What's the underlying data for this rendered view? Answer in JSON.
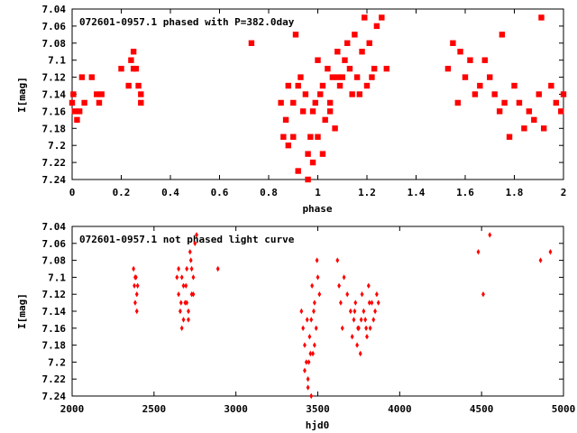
{
  "chart_data": [
    {
      "type": "scatter",
      "title": "072601-0957.1 phased with P=382.0day",
      "xlabel": "phase",
      "ylabel": "I[mag]",
      "xlim": [
        0,
        2
      ],
      "ylim": [
        7.24,
        7.04
      ],
      "y_inverted": true,
      "xticks": [
        0,
        0.2,
        0.4,
        0.6,
        0.8,
        1,
        1.2,
        1.4,
        1.6,
        1.8,
        2
      ],
      "xtick_labels": [
        "0",
        "0.2",
        "0.4",
        "0.6",
        "0.8",
        "1",
        "1.2",
        "1.4",
        "1.6",
        "1.8",
        "2"
      ],
      "yticks": [
        7.04,
        7.06,
        7.08,
        7.1,
        7.12,
        7.14,
        7.16,
        7.18,
        7.2,
        7.22,
        7.24
      ],
      "ytick_labels": [
        "7.04",
        "7.06",
        "7.08",
        "7.1",
        "7.12",
        "7.14",
        "7.16",
        "7.18",
        "7.2",
        "7.22",
        "7.24"
      ],
      "grid": false,
      "marker_color": "#ff0000",
      "series": [
        {
          "x": [
            0.0,
            0.005,
            0.01,
            0.02,
            0.03,
            0.04,
            0.05,
            0.08,
            0.1,
            0.11,
            0.12,
            0.2,
            0.23,
            0.24,
            0.25,
            0.25,
            0.26,
            0.27,
            0.28,
            0.28,
            0.73,
            0.85,
            0.86,
            0.87,
            0.88,
            0.9,
            0.9,
            0.91,
            0.92,
            0.93,
            0.94,
            0.95,
            0.96,
            0.97,
            0.98,
            0.99,
            1.0,
            1.01,
            1.02,
            1.03,
            1.04,
            1.05,
            1.06,
            1.07,
            1.08,
            1.09,
            1.1,
            1.11,
            1.12,
            1.13,
            1.14,
            1.15,
            1.16,
            1.17,
            1.18,
            1.19,
            1.2,
            1.21,
            1.22,
            1.23,
            1.24,
            1.26,
            1.28,
            0.88,
            0.92,
            0.96,
            0.98,
            1.0,
            1.02,
            1.05,
            1.08,
            1.53,
            1.55,
            1.57,
            1.58,
            1.6,
            1.62,
            1.64,
            1.66,
            1.68,
            1.7,
            1.72,
            1.74,
            1.75,
            1.76,
            1.78,
            1.8,
            1.82,
            1.84,
            1.86,
            1.88,
            1.9,
            1.91,
            1.92,
            1.95,
            1.97,
            1.99,
            2.0
          ],
          "y": [
            7.15,
            7.14,
            7.16,
            7.17,
            7.16,
            7.12,
            7.15,
            7.12,
            7.14,
            7.15,
            7.14,
            7.11,
            7.13,
            7.1,
            7.09,
            7.11,
            7.11,
            7.13,
            7.15,
            7.14,
            7.08,
            7.15,
            7.19,
            7.17,
            7.13,
            7.15,
            7.19,
            7.07,
            7.13,
            7.12,
            7.16,
            7.14,
            7.21,
            7.19,
            7.16,
            7.15,
            7.1,
            7.14,
            7.13,
            7.17,
            7.11,
            7.15,
            7.12,
            7.18,
            7.09,
            7.13,
            7.12,
            7.1,
            7.08,
            7.11,
            7.14,
            7.07,
            7.12,
            7.14,
            7.09,
            7.05,
            7.13,
            7.08,
            7.12,
            7.11,
            7.06,
            7.05,
            7.11,
            7.2,
            7.23,
            7.24,
            7.22,
            7.19,
            7.21,
            7.16,
            7.12,
            7.11,
            7.08,
            7.15,
            7.09,
            7.12,
            7.1,
            7.14,
            7.13,
            7.1,
            7.12,
            7.14,
            7.16,
            7.07,
            7.15,
            7.19,
            7.13,
            7.15,
            7.18,
            7.16,
            7.17,
            7.14,
            7.05,
            7.18,
            7.13,
            7.15,
            7.16,
            7.14
          ]
        }
      ]
    },
    {
      "type": "scatter",
      "title": "072601-0957.1 not phased light curve",
      "xlabel": "hjd0",
      "ylabel": "I[mag]",
      "xlim": [
        2000,
        5000
      ],
      "ylim": [
        7.24,
        7.04
      ],
      "y_inverted": true,
      "xticks": [
        2000,
        2500,
        3000,
        3500,
        4000,
        4500,
        5000
      ],
      "xtick_labels": [
        "2000",
        "2500",
        "3000",
        "3500",
        "4000",
        "4500",
        "5000"
      ],
      "yticks": [
        7.04,
        7.06,
        7.08,
        7.1,
        7.12,
        7.14,
        7.16,
        7.18,
        7.2,
        7.22,
        7.24
      ],
      "ytick_labels": [
        "7.04",
        "7.06",
        "7.08",
        "7.1",
        "7.12",
        "7.14",
        "7.16",
        "7.18",
        "7.2",
        "7.22",
        "7.24"
      ],
      "grid": false,
      "marker_color": "#ff0000",
      "series": [
        {
          "x": [
            2375,
            2380,
            2385,
            2390,
            2395,
            2400,
            2395,
            2385,
            2640,
            2650,
            2660,
            2670,
            2680,
            2690,
            2700,
            2710,
            2720,
            2730,
            2740,
            2750,
            2760,
            2650,
            2665,
            2680,
            2695,
            2710,
            2725,
            2740,
            2670,
            2700,
            2730,
            2890,
            3400,
            3410,
            3420,
            3430,
            3440,
            3450,
            3460,
            3470,
            3480,
            3490,
            3500,
            3510,
            3420,
            3440,
            3460,
            3480,
            3435,
            3455,
            3475,
            3495,
            3445,
            3465,
            3620,
            3630,
            3640,
            3650,
            3660,
            3680,
            3700,
            3710,
            3720,
            3730,
            3740,
            3750,
            3760,
            3770,
            3780,
            3790,
            3800,
            3810,
            3820,
            3830,
            3840,
            3850,
            3860,
            3870,
            3725,
            3745,
            3765,
            3795,
            3815,
            4480,
            4510,
            4550,
            4860,
            4920
          ],
          "y": [
            7.09,
            7.11,
            7.13,
            7.1,
            7.14,
            7.11,
            7.12,
            7.1,
            7.1,
            7.12,
            7.14,
            7.16,
            7.11,
            7.13,
            7.09,
            7.15,
            7.07,
            7.12,
            7.1,
            7.06,
            7.05,
            7.09,
            7.13,
            7.15,
            7.11,
            7.14,
            7.08,
            7.12,
            7.1,
            7.13,
            7.09,
            7.09,
            7.14,
            7.16,
            7.18,
            7.2,
            7.22,
            7.17,
            7.15,
            7.19,
            7.13,
            7.16,
            7.1,
            7.12,
            7.21,
            7.23,
            7.24,
            7.18,
            7.15,
            7.19,
            7.14,
            7.08,
            7.2,
            7.11,
            7.08,
            7.11,
            7.13,
            7.16,
            7.1,
            7.12,
            7.14,
            7.17,
            7.15,
            7.13,
            7.18,
            7.16,
            7.19,
            7.12,
            7.14,
            7.15,
            7.17,
            7.11,
            7.16,
            7.13,
            7.15,
            7.14,
            7.12,
            7.13,
            7.14,
            7.16,
            7.15,
            7.16,
            7.13,
            7.07,
            7.12,
            7.05,
            7.08,
            7.07
          ]
        }
      ]
    }
  ]
}
